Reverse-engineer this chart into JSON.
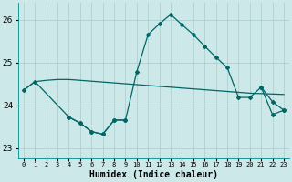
{
  "xlabel": "Humidex (Indice chaleur)",
  "bg_color": "#cce8e8",
  "grid_color": "#aacccc",
  "line_color": "#006666",
  "x": [
    0,
    1,
    2,
    3,
    4,
    5,
    6,
    7,
    8,
    9,
    10,
    11,
    12,
    13,
    14,
    15,
    16,
    17,
    18,
    19,
    20,
    21,
    22,
    23
  ],
  "line1": [
    24.35,
    24.55,
    24.58,
    24.6,
    24.6,
    24.58,
    24.56,
    24.54,
    24.52,
    24.5,
    24.48,
    24.46,
    24.44,
    24.42,
    24.4,
    24.38,
    24.36,
    24.34,
    24.32,
    24.3,
    24.28,
    24.27,
    24.26,
    24.25
  ],
  "line2_x": [
    0,
    1,
    4,
    5,
    6,
    7,
    8,
    9,
    10,
    11,
    12,
    13,
    14,
    15,
    16,
    17,
    18,
    19,
    20,
    21,
    22,
    23
  ],
  "line2_y": [
    24.35,
    24.55,
    23.72,
    23.58,
    23.38,
    23.32,
    23.65,
    23.65,
    24.78,
    25.65,
    25.9,
    26.12,
    25.88,
    25.65,
    25.38,
    25.12,
    24.88,
    24.18,
    24.18,
    24.42,
    24.08,
    23.88
  ],
  "line3_x": [
    4,
    5,
    6,
    7,
    8,
    9,
    21,
    22,
    23
  ],
  "line3_y": [
    23.72,
    23.58,
    23.38,
    23.32,
    23.65,
    23.65,
    24.42,
    23.78,
    23.88
  ],
  "ylim": [
    22.75,
    26.4
  ],
  "yticks": [
    23,
    24,
    25,
    26
  ],
  "xlim": [
    -0.5,
    23.5
  ]
}
